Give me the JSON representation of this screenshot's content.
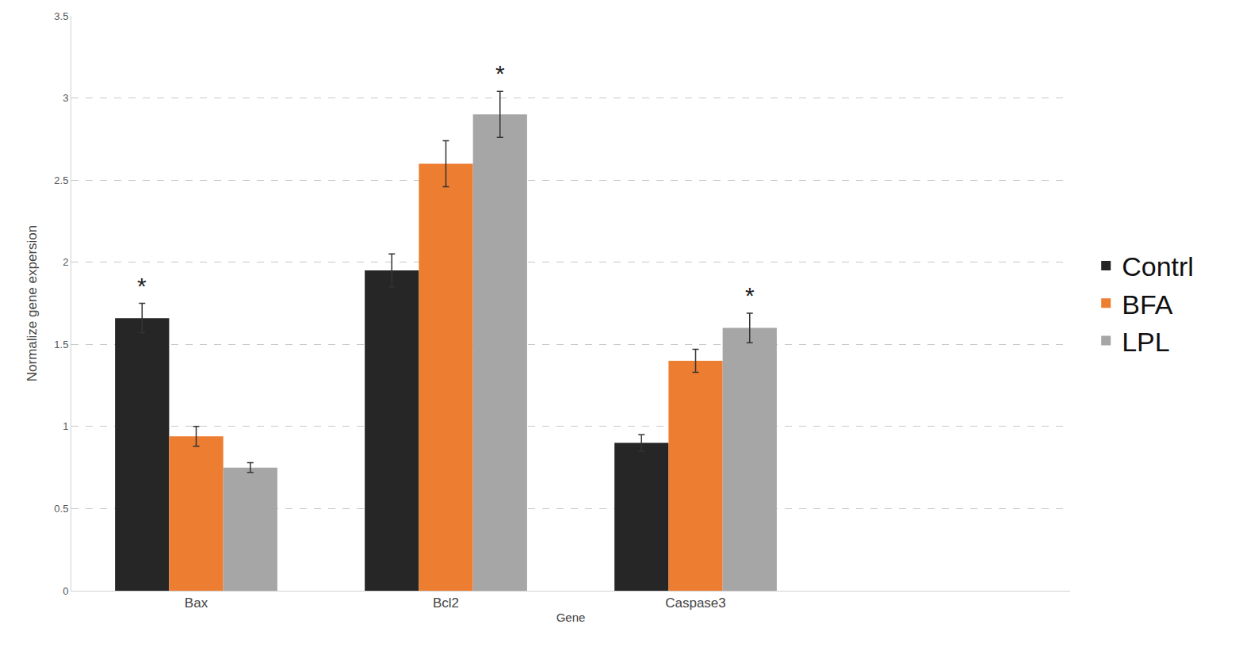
{
  "chart_data": {
    "type": "bar",
    "x_label": "Gene",
    "y_label": "Normalize gene expersion",
    "categories": [
      "Bax",
      "Bcl2",
      "Caspase3"
    ],
    "series": [
      {
        "name": "Contrl",
        "color": "#262626",
        "values": [
          1.66,
          1.95,
          0.9
        ],
        "errors": [
          0.09,
          0.1,
          0.05
        ]
      },
      {
        "name": "BFA",
        "color": "#ed7d31",
        "values": [
          0.94,
          2.6,
          1.4
        ],
        "errors": [
          0.06,
          0.14,
          0.07
        ]
      },
      {
        "name": "LPL",
        "color": "#a6a6a6",
        "values": [
          0.75,
          2.9,
          1.6
        ],
        "errors": [
          0.03,
          0.14,
          0.09
        ]
      }
    ],
    "annotations": [
      {
        "text": "*",
        "category": "Bax",
        "series": "Contrl"
      },
      {
        "text": "*",
        "category": "Bcl2",
        "series": "LPL"
      },
      {
        "text": "*",
        "category": "Caspase3",
        "series": "LPL"
      }
    ],
    "ylim": [
      0,
      3.5
    ],
    "yticks": [
      0,
      0.5,
      1,
      1.5,
      2,
      2.5,
      3,
      3.5
    ],
    "grid": true,
    "legend": "right"
  }
}
